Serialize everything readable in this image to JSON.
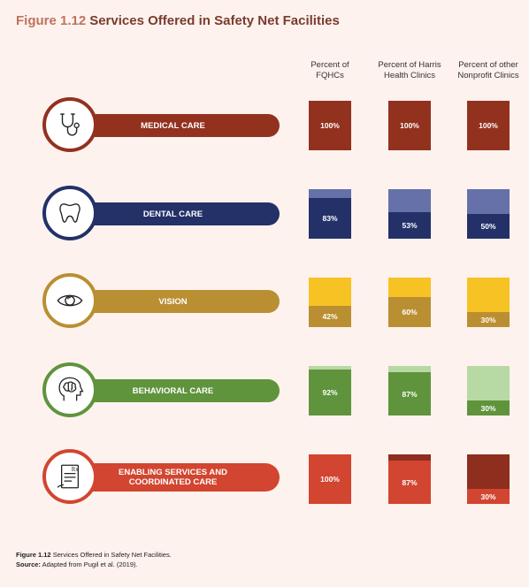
{
  "figure": {
    "label": "Figure 1.12",
    "title": "Services Offered in Safety Net Facilities"
  },
  "columns": [
    {
      "line1": "Percent of",
      "line2": "FQHCs"
    },
    {
      "line1": "Percent of Harris",
      "line2": "Health Clinics"
    },
    {
      "line1": "Percent of other",
      "line2": "Nonprofit Clinics"
    }
  ],
  "chart_data": {
    "type": "bar",
    "title": "Services Offered in Safety Net Facilities",
    "categories": [
      "MEDICAL CARE",
      "DENTAL CARE",
      "VISION",
      "BEHAVIORAL CARE",
      "ENABLING SERVICES AND COORDINATED CARE"
    ],
    "series": [
      {
        "name": "Percent of FQHCs",
        "values": [
          100,
          83,
          42,
          92,
          100
        ]
      },
      {
        "name": "Percent of Harris Health Clinics",
        "values": [
          100,
          53,
          60,
          87,
          87
        ]
      },
      {
        "name": "Percent of other Nonprofit Clinics",
        "values": [
          100,
          50,
          30,
          30,
          30
        ]
      }
    ],
    "value_labels": [
      [
        "100%",
        "100%",
        "100%"
      ],
      [
        "83%",
        "53%",
        "50%"
      ],
      [
        "42%",
        "60%",
        "30%"
      ],
      [
        "92%",
        "87%",
        "30%"
      ],
      [
        "100%",
        "87%",
        "30%"
      ]
    ],
    "ylim": [
      0,
      100
    ]
  },
  "rows": [
    {
      "label_line1": "MEDICAL CARE",
      "label_line2": "",
      "icon": "stethoscope-icon",
      "color": "#93311f",
      "light": "#93311f"
    },
    {
      "label_line1": "DENTAL CARE",
      "label_line2": "",
      "icon": "tooth-icon",
      "color": "#233168",
      "light": "#6571a8"
    },
    {
      "label_line1": "VISION",
      "label_line2": "",
      "icon": "eye-icon",
      "color": "#ba8f32",
      "light": "#f7c223"
    },
    {
      "label_line1": "BEHAVIORAL CARE",
      "label_line2": "",
      "icon": "brain-icon",
      "color": "#5f943c",
      "light": "#b7d9a3"
    },
    {
      "label_line1": "ENABLING SERVICES AND",
      "label_line2": "COORDINATED CARE",
      "icon": "prescription-icon",
      "color": "#d24530",
      "light": "#8e2e1e"
    }
  ],
  "footnote": {
    "caption_label": "Figure 1.12",
    "caption_text": "Services Offered in Safety Net Facilities.",
    "source_label": "Source:",
    "source_text": "Adapted from Pugil et al. (2019)."
  }
}
